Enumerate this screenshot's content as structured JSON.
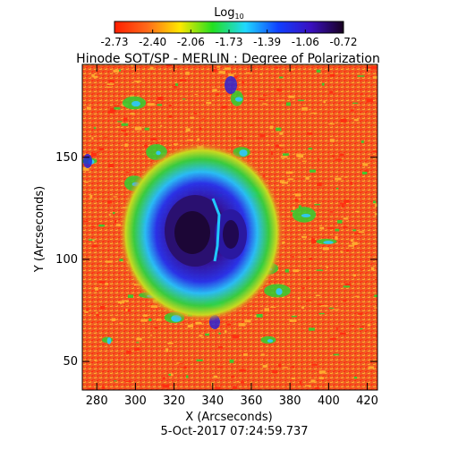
{
  "colorbar": {
    "label_main": "Log",
    "label_sub": "10",
    "ticks": [
      "-2.73",
      "-2.40",
      "-2.06",
      "-1.73",
      "-1.39",
      "-1.06",
      "-0.72"
    ],
    "palette": [
      "#ff1e00",
      "#ff6a1a",
      "#ffe800",
      "#22e020",
      "#20d8ff",
      "#1040ff",
      "#3a10c0",
      "#180020"
    ]
  },
  "title": "Hinode SOT/SP - MERLIN : Degree of Polarization",
  "axes": {
    "xlabel": "X (Arcseconds)",
    "ylabel": "Y (Arcseconds)",
    "xticks": [
      "280",
      "300",
      "320",
      "340",
      "360",
      "380",
      "400",
      "420"
    ],
    "yticks": [
      "150",
      "100",
      "50"
    ]
  },
  "timestamp": "5-Oct-2017 07:24:59.737",
  "image_colors": {
    "background": "#ee5a26",
    "speckle_red": "#ff2a10",
    "speckle_orange": "#ffb030",
    "penumbra_green": "#30d030",
    "penumbra_cyan": "#30c8ff",
    "umbra_blue": "#2020e0",
    "umbra_core": "#2a0a50"
  }
}
